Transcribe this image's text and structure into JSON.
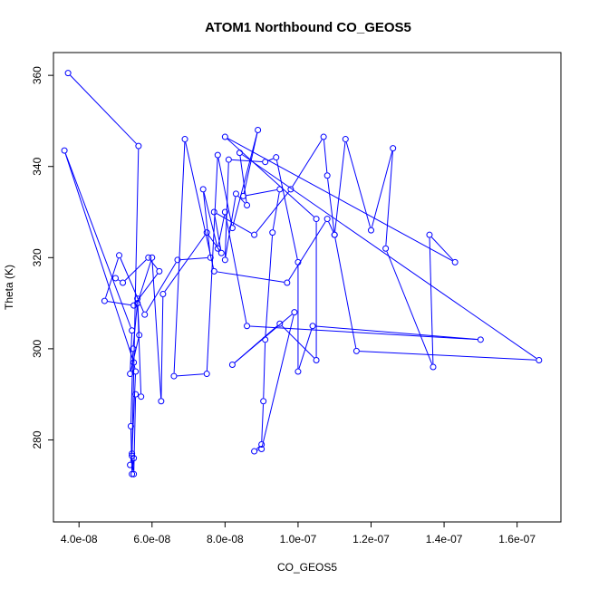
{
  "chart_data": {
    "type": "scatter",
    "title": "ATOM1 Northbound CO_GEOS5",
    "xlabel": "CO_GEOS5",
    "ylabel": "Theta (K)",
    "xlim": [
      3.3e-08,
      1.72e-07
    ],
    "ylim": [
      262,
      365
    ],
    "x_ticks": [
      4e-08,
      6e-08,
      8e-08,
      1e-07,
      1.2e-07,
      1.4e-07,
      1.6e-07
    ],
    "x_tick_labels": [
      "4.0e-08",
      "6.0e-08",
      "8.0e-08",
      "1.0e-07",
      "1.2e-07",
      "1.4e-07",
      "1.6e-07"
    ],
    "y_ticks": [
      280,
      300,
      320,
      340,
      360
    ],
    "y_tick_labels": [
      "280",
      "300",
      "320",
      "340",
      "360"
    ],
    "grid": false,
    "style": "points connected by lines (type='o')",
    "colors": {
      "series": "#0000ff",
      "axes": "#000000",
      "background": "#ffffff"
    },
    "series": [
      {
        "x": [
          3.7e-08,
          5.63e-08,
          5.45e-08,
          5.5e-08,
          5.55e-08,
          5.7e-08,
          5.6e-08,
          5.65e-08,
          5.4e-08,
          5.45e-08,
          3.6e-08,
          5.5e-08,
          5.55e-08,
          5.45e-08,
          5.4e-08,
          5.5e-08,
          5.45e-08,
          5.42e-08,
          5.48e-08,
          5.6e-08,
          6e-08,
          6.25e-08,
          6.3e-08,
          7.5e-08,
          7.9e-08,
          7.7e-08,
          8.8e-08,
          9.8e-08,
          1.07e-07,
          1.08e-07,
          1.1e-07,
          1.13e-07,
          1.2e-07,
          1.26e-07,
          1.24e-07,
          1.37e-07,
          1.36e-07,
          1.43e-07,
          8e-08,
          1.05e-07,
          1.05e-07,
          9.5e-08,
          8.2e-08,
          9.9e-08,
          9e-08,
          8.8e-08,
          9e-08,
          9.05e-08,
          9.1e-08,
          9.3e-08,
          9.5e-08,
          8.5e-08,
          8.9e-08,
          8.2e-08,
          7.8e-08,
          7.5e-08,
          6.6e-08,
          6.9e-08,
          7.7e-08,
          9.7e-08,
          1.08e-07,
          1.1e-07,
          1.16e-07,
          1.66e-07,
          8.4e-08,
          8.6e-08,
          8.3e-08,
          8e-08,
          8.1e-08,
          9.1e-08,
          9.4e-08,
          1e-07,
          1e-07,
          1.04e-07,
          1.5e-07,
          8.6e-08,
          8e-08,
          7.8e-08,
          7.4e-08,
          7.6e-08,
          6.7e-08,
          5.8e-08,
          5.1e-08,
          4.7e-08,
          5.5e-08,
          6.2e-08,
          5.9e-08,
          5.2e-08,
          5e-08
        ],
        "y": [
          360.5,
          344.5,
          276.5,
          272.5,
          290,
          289.5,
          311,
          303,
          294.5,
          304,
          343.5,
          297,
          295,
          277,
          274.5,
          276,
          272.5,
          283,
          300,
          310,
          320,
          288.5,
          312,
          325.5,
          321,
          330,
          325,
          335,
          346.5,
          338,
          325,
          346,
          326,
          344,
          322,
          296,
          325,
          319,
          346.5,
          328.5,
          297.5,
          305.5,
          296.5,
          308,
          278,
          277.5,
          279,
          288.5,
          302,
          325.5,
          335,
          333.5,
          348,
          326.5,
          342.5,
          294.5,
          294,
          346,
          317,
          314.5,
          328.5,
          325,
          299.5,
          297.5,
          343,
          331.5,
          334,
          319.5,
          341.5,
          341,
          342,
          319,
          295,
          305,
          302,
          305,
          330,
          322,
          335,
          320,
          319.5,
          307.5,
          320.5,
          310.5,
          309.5,
          317,
          320,
          314.5,
          315.5
        ]
      }
    ]
  }
}
